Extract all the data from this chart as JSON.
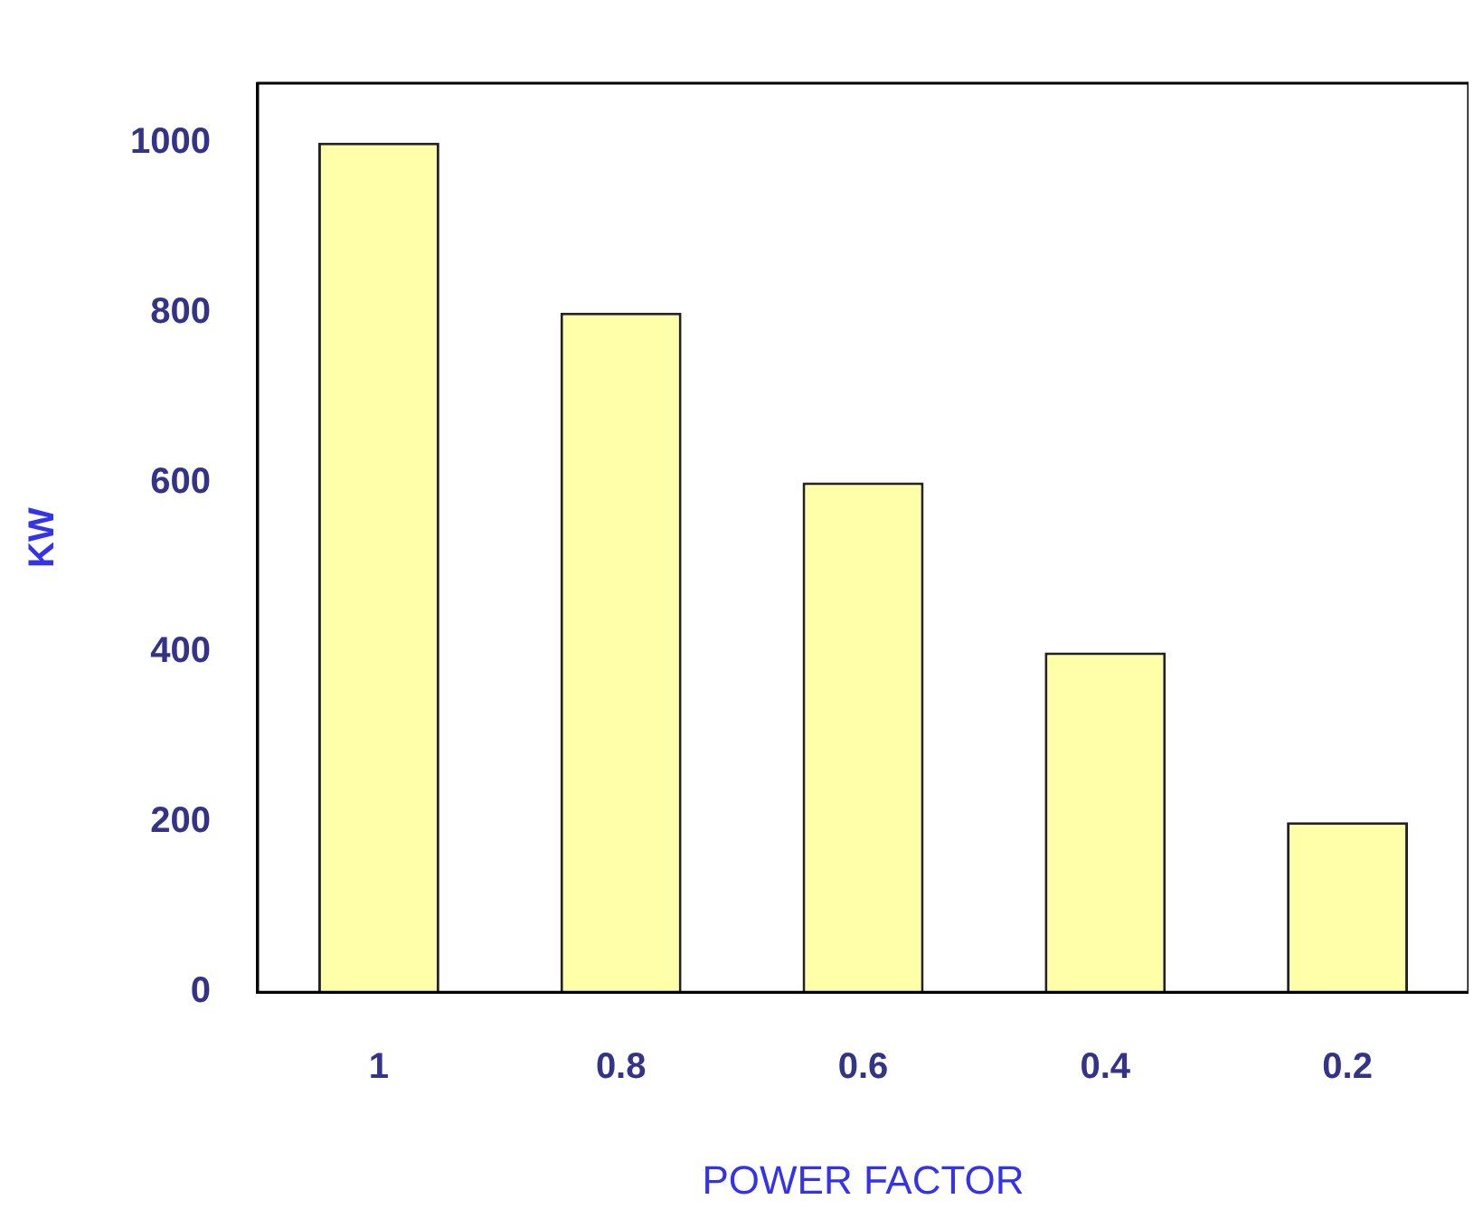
{
  "chart_data": {
    "type": "bar",
    "xlabel": "POWER FACTOR",
    "ylabel": "KW",
    "categories": [
      "1",
      "0.8",
      "0.6",
      "0.4",
      "0.2"
    ],
    "values": [
      1000,
      800,
      600,
      400,
      200
    ],
    "color": "#ffffaa",
    "ylim": [
      0,
      1070
    ],
    "yticks": [
      0,
      200,
      400,
      600,
      800,
      1000
    ],
    "grid": false,
    "legend": false
  }
}
